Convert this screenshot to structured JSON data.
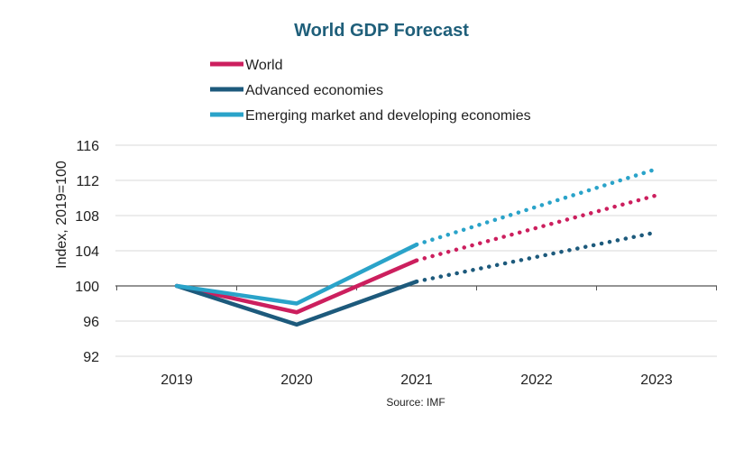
{
  "chart_data": {
    "type": "line",
    "title": "World GDP Forecast",
    "xlabel": "",
    "ylabel": "Index, 2019=100",
    "categories": [
      "2019",
      "2020",
      "2021",
      "2022",
      "2023"
    ],
    "yticks": [
      92,
      96,
      100,
      104,
      108,
      112,
      116
    ],
    "ylim": [
      92,
      116
    ],
    "grid": true,
    "legend_position": "top",
    "source": "Source: IMF",
    "forecast_from": "2021",
    "series": [
      {
        "name": "World",
        "color": "#cc1f5e",
        "values": [
          100,
          97.0,
          102.9,
          106.6,
          110.3
        ]
      },
      {
        "name": "Advanced economies",
        "color": "#1d5a7c",
        "values": [
          100,
          95.6,
          100.5,
          103.3,
          106.1
        ]
      },
      {
        "name": "Emerging market and developing economies",
        "color": "#2aa3c9",
        "values": [
          100,
          98.0,
          104.7,
          109.0,
          113.3
        ]
      }
    ]
  }
}
